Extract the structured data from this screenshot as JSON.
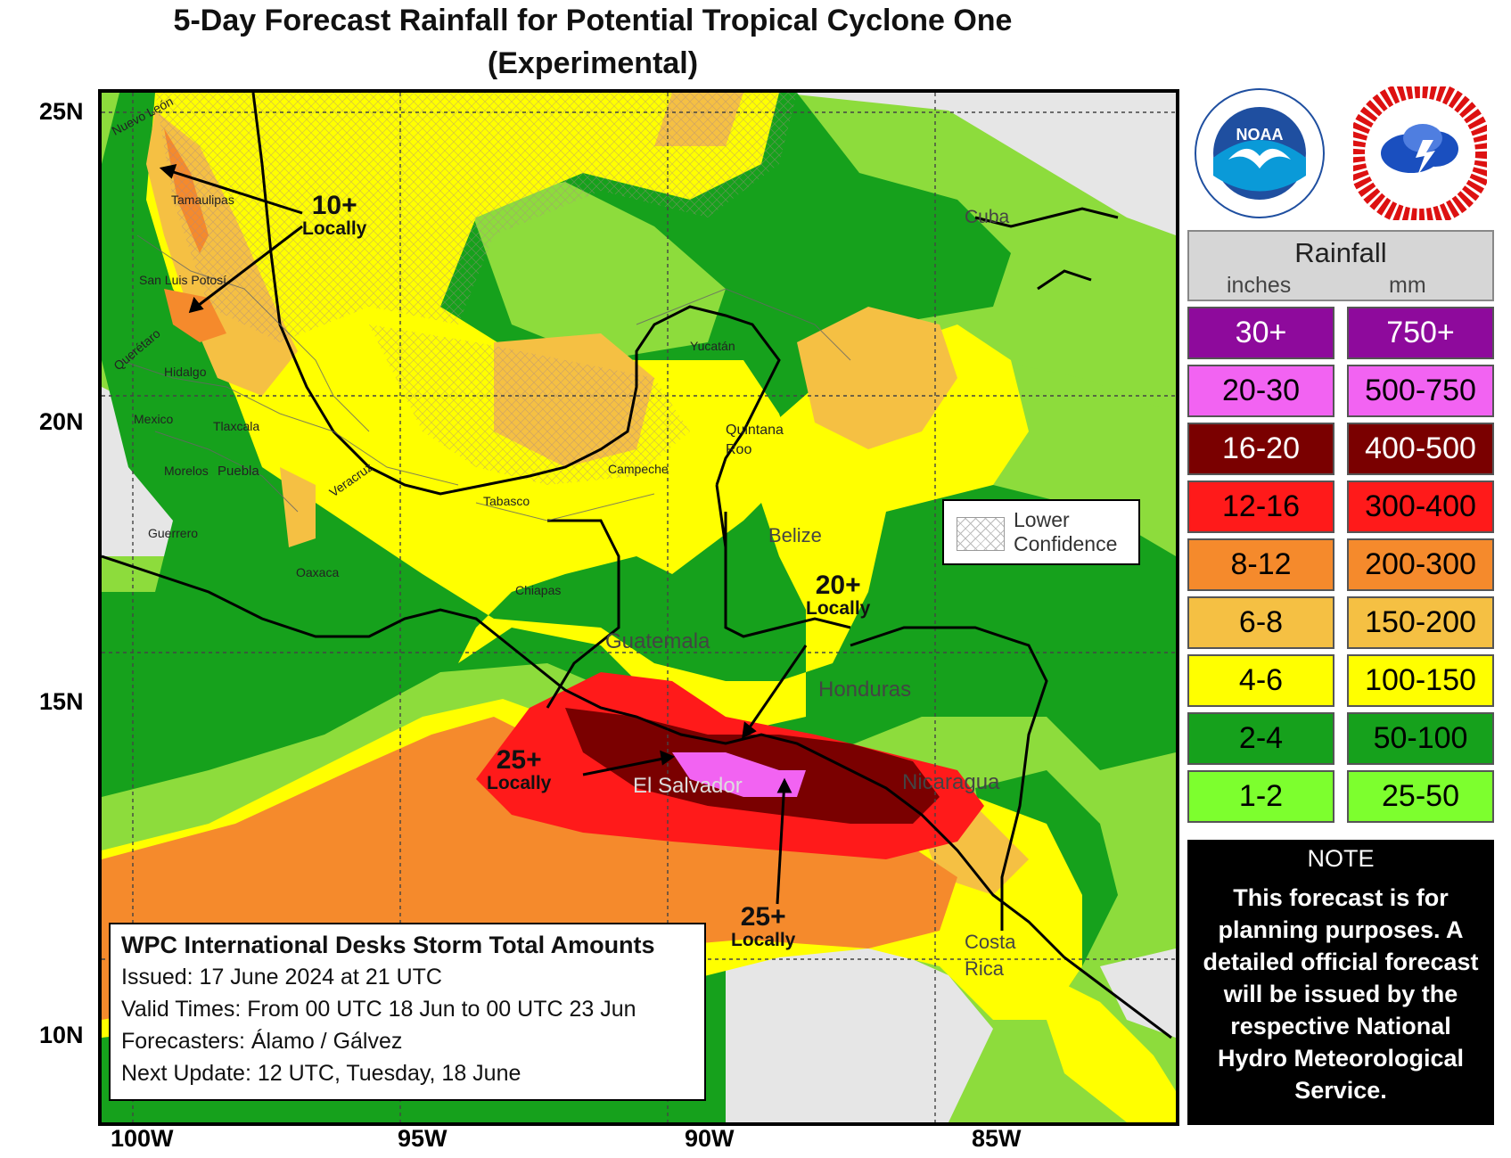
{
  "title": {
    "line1": "5-Day Forecast Rainfall for Potential Tropical Cyclone One",
    "line2": "(Experimental)"
  },
  "axes": {
    "lat_labels": [
      "25N",
      "20N",
      "15N",
      "10N"
    ],
    "lon_labels": [
      "100W",
      "95W",
      "90W",
      "85W"
    ]
  },
  "map_labels": {
    "states": [
      "Nuevo León",
      "Tamaulipas",
      "San Luis Potosí",
      "Querétaro",
      "Hidalgo",
      "Mexico",
      "Tlaxcala",
      "Morelos",
      "Puebla",
      "Veracruz",
      "Guerrero",
      "Oaxaca",
      "Tabasco",
      "Campeche",
      "Chiapas",
      "Yucatán",
      "Quintana Roo"
    ],
    "countries": [
      "Cuba",
      "Belize",
      "Guatemala",
      "Honduras",
      "El Salvador",
      "Nicaragua",
      "Costa Rica"
    ]
  },
  "callouts": [
    {
      "big": "10+",
      "small": "Locally"
    },
    {
      "big": "20+",
      "small": "Locally"
    },
    {
      "big": "25+",
      "small": "Locally"
    },
    {
      "big": "25+",
      "small": "Locally"
    }
  ],
  "lower_confidence": {
    "line1": "Lower",
    "line2": "Confidence"
  },
  "info_box": {
    "heading": "WPC International Desks Storm Total Amounts",
    "issued": "Issued:  17 June 2024 at 21 UTC",
    "valid": "Valid Times:  From 00 UTC 18 Jun  to 00 UTC 23 Jun",
    "forecasters": "Forecasters: Álamo / Gálvez",
    "next_update": "Next Update: 12 UTC, Tuesday, 18 June"
  },
  "logos": [
    "noaa-logo",
    "national-weather-service-logo"
  ],
  "legend": {
    "title": "Rainfall",
    "unit_inches": "inches",
    "unit_mm": "mm",
    "rows": [
      {
        "inches": "30+",
        "mm": "750+",
        "color": "#8e0a9c",
        "text": "#ffffff"
      },
      {
        "inches": "20-30",
        "mm": "500-750",
        "color": "#f263f2",
        "text": "#000000"
      },
      {
        "inches": "16-20",
        "mm": "400-500",
        "color": "#7a0000",
        "text": "#ffffff"
      },
      {
        "inches": "12-16",
        "mm": "300-400",
        "color": "#ff1a1a",
        "text": "#000000"
      },
      {
        "inches": "8-12",
        "mm": "200-300",
        "color": "#f58a2c",
        "text": "#000000"
      },
      {
        "inches": "6-8",
        "mm": "150-200",
        "color": "#f5c043",
        "text": "#000000"
      },
      {
        "inches": "4-6",
        "mm": "100-150",
        "color": "#ffff00",
        "text": "#000000"
      },
      {
        "inches": "2-4",
        "mm": "50-100",
        "color": "#16a11c",
        "text": "#000000"
      },
      {
        "inches": "1-2",
        "mm": "25-50",
        "color": "#7dff2e",
        "text": "#000000"
      }
    ]
  },
  "note": {
    "heading": "NOTE",
    "body": "This forecast is for planning purposes. A detailed official forecast will be issued by the respective National Hydro Meteorological Service."
  }
}
